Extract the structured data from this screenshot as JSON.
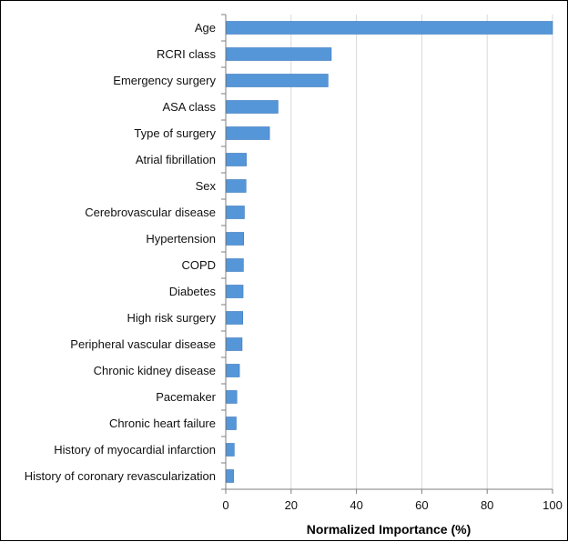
{
  "chart_data": {
    "type": "bar",
    "orientation": "horizontal",
    "categories": [
      "Age",
      "RCRI class",
      "Emergency surgery",
      "ASA class",
      "Type of surgery",
      "Atrial fibrillation",
      "Sex",
      "Cerebrovascular disease",
      "Hypertension",
      "COPD",
      "Diabetes",
      "High risk surgery",
      "Peripheral vascular disease",
      "Chronic kidney disease",
      "Pacemaker",
      "Chronic heart failure",
      "History of myocardial infarction",
      "History of coronary revascularization"
    ],
    "values": [
      100,
      32.3,
      31.3,
      16.0,
      13.4,
      6.3,
      6.2,
      5.7,
      5.5,
      5.4,
      5.3,
      5.2,
      5.0,
      4.2,
      3.4,
      3.2,
      2.6,
      2.4
    ],
    "title": "",
    "xlabel": "Normalized Importance (%)",
    "ylabel": "",
    "xlim": [
      0,
      100
    ],
    "xticks": [
      "0",
      "20",
      "40",
      "60",
      "80",
      "100"
    ],
    "grid": "vertical",
    "bar_color": "#5596d8",
    "bar_edge_color": "#3a78bf",
    "grid_color": "#d9d9d9",
    "axis_color": "#7f7f7f"
  }
}
